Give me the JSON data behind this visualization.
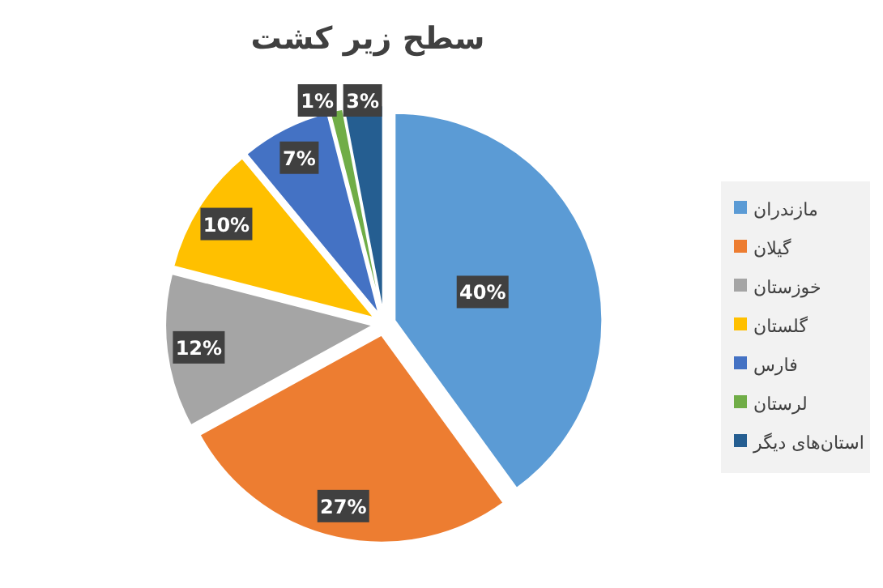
{
  "chart_data": {
    "type": "pie",
    "title": "سطح زیر کشت",
    "categories": [
      "مازندران",
      "گیلان",
      "خوزستان",
      "گلستان",
      "فارس",
      "لرستان",
      "استان‌های دیگر"
    ],
    "values": [
      40,
      27,
      12,
      10,
      7,
      1,
      3
    ],
    "value_labels": [
      "40%",
      "27%",
      "12%",
      "10%",
      "7%",
      "1%",
      "3%"
    ],
    "colors": [
      "#5b9bd5",
      "#ed7d31",
      "#a5a5a5",
      "#ffc000",
      "#4472c4",
      "#70ad47",
      "#255e91"
    ],
    "legend": "right"
  }
}
